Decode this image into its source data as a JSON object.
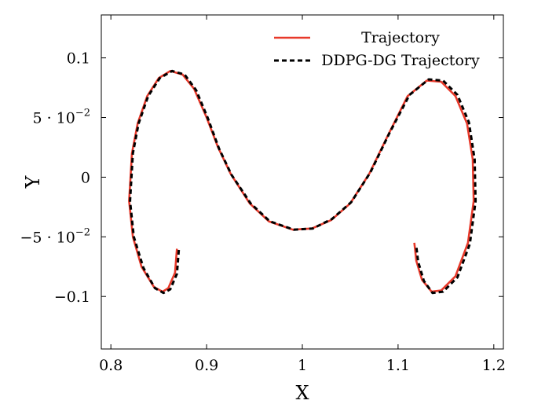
{
  "chart_data": {
    "type": "line",
    "title": "",
    "xlabel": "X",
    "ylabel": "Y",
    "xlim": [
      0.79,
      1.21
    ],
    "ylim": [
      -0.144,
      0.136
    ],
    "grid": false,
    "legend_position": "top-right",
    "x_ticks": [
      {
        "value": 0.8,
        "label": "0.8"
      },
      {
        "value": 0.9,
        "label": "0.9"
      },
      {
        "value": 1.0,
        "label": "1"
      },
      {
        "value": 1.1,
        "label": "1.1"
      },
      {
        "value": 1.2,
        "label": "1.2"
      }
    ],
    "y_ticks": [
      {
        "value": -0.1,
        "label": "−0.1",
        "sup": ""
      },
      {
        "value": -0.05,
        "label": "−5 · 10",
        "sup": "−2"
      },
      {
        "value": 0.0,
        "label": "0",
        "sup": ""
      },
      {
        "value": 0.05,
        "label": "5 · 10",
        "sup": "−2"
      },
      {
        "value": 0.1,
        "label": "0.1",
        "sup": ""
      }
    ],
    "series": [
      {
        "name": "Trajectory",
        "color": "#e8392a",
        "style": "solid",
        "points": [
          [
            0.869,
            -0.06
          ],
          [
            0.867,
            -0.08
          ],
          [
            0.86,
            -0.093
          ],
          [
            0.854,
            -0.096
          ],
          [
            0.845,
            -0.092
          ],
          [
            0.832,
            -0.075
          ],
          [
            0.823,
            -0.05
          ],
          [
            0.819,
            -0.02
          ],
          [
            0.822,
            0.02
          ],
          [
            0.828,
            0.045
          ],
          [
            0.838,
            0.068
          ],
          [
            0.85,
            0.083
          ],
          [
            0.862,
            0.089
          ],
          [
            0.875,
            0.086
          ],
          [
            0.887,
            0.074
          ],
          [
            0.9,
            0.05
          ],
          [
            0.912,
            0.025
          ],
          [
            0.925,
            0.003
          ],
          [
            0.945,
            -0.022
          ],
          [
            0.965,
            -0.037
          ],
          [
            0.99,
            -0.044
          ],
          [
            1.01,
            -0.043
          ],
          [
            1.03,
            -0.036
          ],
          [
            1.05,
            -0.022
          ],
          [
            1.07,
            0.003
          ],
          [
            1.09,
            0.036
          ],
          [
            1.11,
            0.068
          ],
          [
            1.13,
            0.081
          ],
          [
            1.145,
            0.08
          ],
          [
            1.16,
            0.068
          ],
          [
            1.172,
            0.045
          ],
          [
            1.178,
            0.015
          ],
          [
            1.179,
            -0.02
          ],
          [
            1.173,
            -0.055
          ],
          [
            1.16,
            -0.083
          ],
          [
            1.145,
            -0.095
          ],
          [
            1.135,
            -0.096
          ],
          [
            1.125,
            -0.086
          ],
          [
            1.119,
            -0.07
          ],
          [
            1.117,
            -0.055
          ]
        ]
      },
      {
        "name": "DDPG-DG Trajectory",
        "color": "#000000",
        "style": "dashed",
        "points": [
          [
            0.871,
            -0.061
          ],
          [
            0.869,
            -0.081
          ],
          [
            0.862,
            -0.094
          ],
          [
            0.855,
            -0.097
          ],
          [
            0.846,
            -0.093
          ],
          [
            0.834,
            -0.076
          ],
          [
            0.824,
            -0.05
          ],
          [
            0.82,
            -0.02
          ],
          [
            0.823,
            0.02
          ],
          [
            0.829,
            0.045
          ],
          [
            0.839,
            0.068
          ],
          [
            0.851,
            0.083
          ],
          [
            0.864,
            0.089
          ],
          [
            0.877,
            0.086
          ],
          [
            0.889,
            0.073
          ],
          [
            0.901,
            0.05
          ],
          [
            0.913,
            0.024
          ],
          [
            0.926,
            0.002
          ],
          [
            0.946,
            -0.022
          ],
          [
            0.966,
            -0.037
          ],
          [
            0.991,
            -0.044
          ],
          [
            1.011,
            -0.043
          ],
          [
            1.031,
            -0.035
          ],
          [
            1.051,
            -0.021
          ],
          [
            1.071,
            0.004
          ],
          [
            1.091,
            0.037
          ],
          [
            1.112,
            0.069
          ],
          [
            1.132,
            0.082
          ],
          [
            1.147,
            0.081
          ],
          [
            1.162,
            0.069
          ],
          [
            1.174,
            0.046
          ],
          [
            1.18,
            0.015
          ],
          [
            1.181,
            -0.02
          ],
          [
            1.175,
            -0.056
          ],
          [
            1.162,
            -0.084
          ],
          [
            1.147,
            -0.096
          ],
          [
            1.136,
            -0.097
          ],
          [
            1.127,
            -0.087
          ],
          [
            1.121,
            -0.071
          ],
          [
            1.119,
            -0.058
          ]
        ]
      }
    ]
  }
}
